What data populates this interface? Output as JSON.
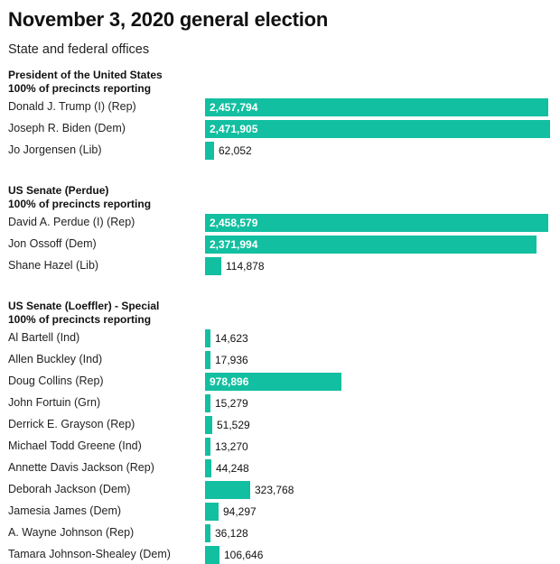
{
  "header": {
    "title": "November 3, 2020 general election",
    "subtitle": "State and federal offices"
  },
  "colors": {
    "bar": "#12bfa0"
  },
  "chart_data": [
    {
      "type": "bar",
      "orientation": "horizontal",
      "title": "President of the United States",
      "subtitle": "100% of precincts reporting",
      "categories": [
        "Donald J. Trump (I) (Rep)",
        "Joseph R. Biden (Dem)",
        "Jo Jorgensen (Lib)"
      ],
      "values": [
        2457794,
        2471905,
        62052
      ],
      "labels": [
        "2,457,794",
        "2,471,905",
        "62,052"
      ]
    },
    {
      "type": "bar",
      "orientation": "horizontal",
      "title": "US Senate (Perdue)",
      "subtitle": "100% of precincts reporting",
      "categories": [
        "David A. Perdue (I) (Rep)",
        "Jon Ossoff (Dem)",
        "Shane Hazel (Lib)"
      ],
      "values": [
        2458579,
        2371994,
        114878
      ],
      "labels": [
        "2,458,579",
        "2,371,994",
        "114,878"
      ]
    },
    {
      "type": "bar",
      "orientation": "horizontal",
      "title": "US Senate (Loeffler) - Special",
      "subtitle": "100% of precincts reporting",
      "categories": [
        "Al Bartell (Ind)",
        "Allen Buckley (Ind)",
        "Doug Collins (Rep)",
        "John Fortuin (Grn)",
        "Derrick E. Grayson (Rep)",
        "Michael Todd Greene (Ind)",
        "Annette Davis Jackson (Rep)",
        "Deborah Jackson (Dem)",
        "Jamesia James (Dem)",
        "A. Wayne Johnson (Rep)",
        "Tamara Johnson-Shealey (Dem)"
      ],
      "values": [
        14623,
        17936,
        978896,
        15279,
        51529,
        13270,
        44248,
        323768,
        94297,
        36128,
        106646
      ],
      "labels": [
        "14,623",
        "17,936",
        "978,896",
        "15,279",
        "51,529",
        "13,270",
        "44,248",
        "323,768",
        "94,297",
        "36,128",
        "106,646"
      ]
    }
  ]
}
